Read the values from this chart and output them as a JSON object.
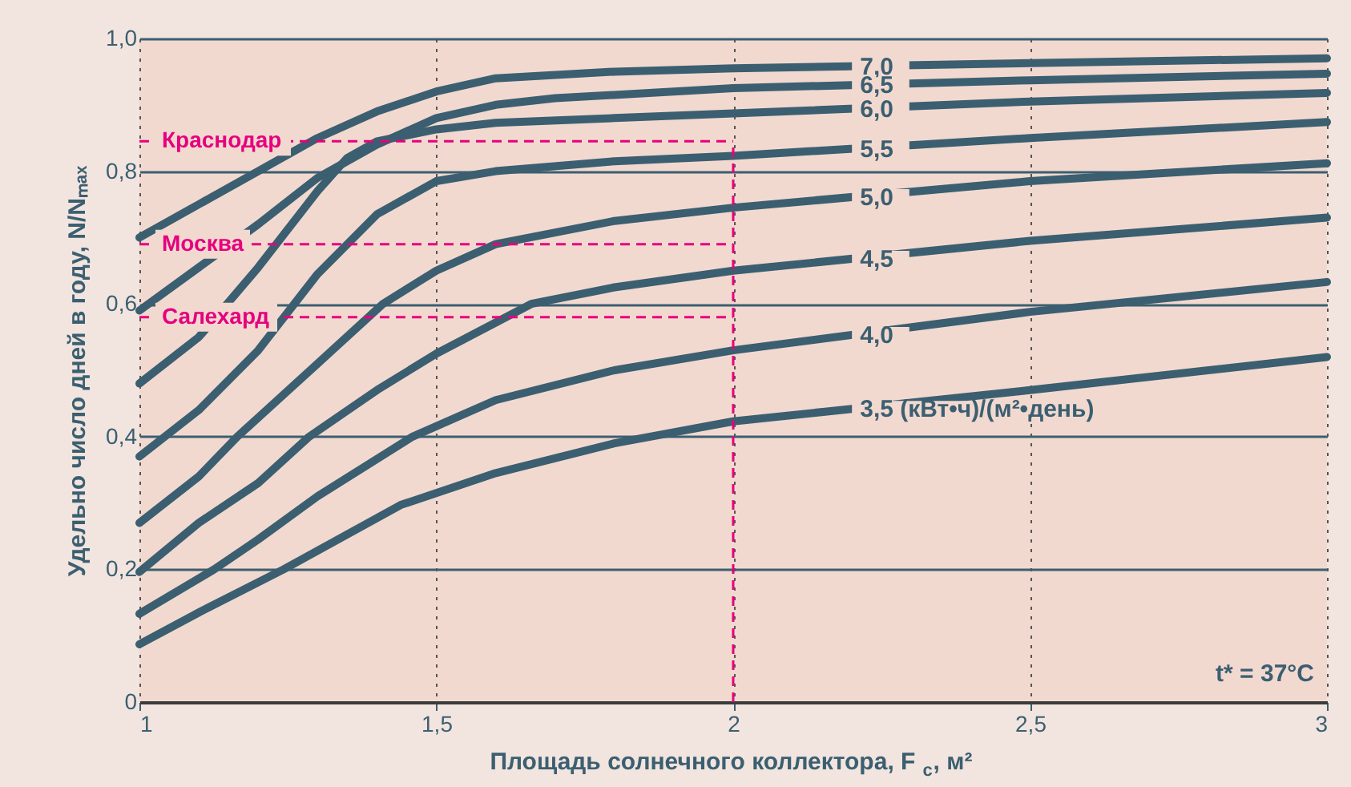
{
  "chart_data": {
    "type": "line",
    "xlabel": "Площадь солнечного коллектора, F$_{c}$, м²",
    "ylabel": "Удельно число дней в году, N/Nₘₐₓ",
    "xlim": [
      1,
      3
    ],
    "xticks": [
      1,
      {
        "value": 1.5,
        "label": "1,5"
      },
      2,
      {
        "value": 2.5,
        "label": "2,5"
      },
      3
    ],
    "ylim": [
      0,
      1
    ],
    "yticks": [
      0,
      {
        "value": 0.2,
        "label": "0,2"
      },
      {
        "value": 0.4,
        "label": "0,4"
      },
      {
        "value": 0.6,
        "label": "0,6"
      },
      {
        "value": 0.8,
        "label": "0,8"
      },
      {
        "value": 1,
        "label": "1,0"
      }
    ],
    "grid": true,
    "marker": "none",
    "line_style": "solid",
    "legend": false,
    "series": [
      {
        "name": "7,0",
        "color": "#3b5f70",
        "x": [
          1,
          1.1,
          1.2,
          1.3,
          1.4,
          1.5,
          1.6,
          1.8,
          2,
          2.5,
          3
        ],
        "values": [
          0.7,
          0.75,
          0.8,
          0.85,
          0.89,
          0.92,
          0.94,
          0.95,
          0.955,
          0.963,
          0.97
        ]
      },
      {
        "name": "6,5",
        "color": "#3b5f70",
        "x": [
          1,
          1.1,
          1.2,
          1.3,
          1.4,
          1.5,
          1.6,
          1.7,
          2,
          2.5,
          3
        ],
        "values": [
          0.59,
          0.655,
          0.72,
          0.79,
          0.84,
          0.88,
          0.9,
          0.91,
          0.925,
          0.937,
          0.947
        ]
      },
      {
        "name": "6,0",
        "color": "#3b5f70",
        "x": [
          1,
          1.1,
          1.2,
          1.3,
          1.35,
          1.4,
          1.5,
          1.6,
          1.8,
          2,
          2.5,
          3
        ],
        "values": [
          0.48,
          0.55,
          0.655,
          0.77,
          0.82,
          0.845,
          0.863,
          0.873,
          0.88,
          0.887,
          0.905,
          0.918
        ]
      },
      {
        "name": "5,5",
        "color": "#3b5f70",
        "x": [
          1,
          1.1,
          1.2,
          1.3,
          1.4,
          1.5,
          1.6,
          1.8,
          2,
          2.5,
          3
        ],
        "values": [
          0.37,
          0.44,
          0.53,
          0.645,
          0.735,
          0.785,
          0.8,
          0.815,
          0.823,
          0.85,
          0.874
        ]
      },
      {
        "name": "5,0",
        "color": "#3b5f70",
        "x": [
          1,
          1.1,
          1.165,
          1.3,
          1.41,
          1.5,
          1.6,
          1.8,
          2,
          2.5,
          3
        ],
        "values": [
          0.27,
          0.34,
          0.4,
          0.51,
          0.6,
          0.65,
          0.69,
          0.725,
          0.745,
          0.785,
          0.812
        ]
      },
      {
        "name": "4,5",
        "color": "#3b5f70",
        "x": [
          1,
          1.1,
          1.2,
          1.286,
          1.4,
          1.5,
          1.66,
          1.8,
          2,
          2.5,
          3
        ],
        "values": [
          0.196,
          0.27,
          0.33,
          0.4,
          0.47,
          0.525,
          0.6,
          0.625,
          0.65,
          0.695,
          0.73
        ]
      },
      {
        "name": "4,0",
        "color": "#3b5f70",
        "x": [
          1,
          1.126,
          1.2,
          1.3,
          1.46,
          1.6,
          1.8,
          2,
          2.5,
          3
        ],
        "values": [
          0.133,
          0.2,
          0.245,
          0.31,
          0.4,
          0.455,
          0.5,
          0.53,
          0.588,
          0.633
        ]
      },
      {
        "name": "3,5 (кВт•ч)/(м²•день)",
        "color": "#3b5f70",
        "x": [
          1,
          1.1,
          1.243,
          1.44,
          1.6,
          1.8,
          2,
          2.5,
          3
        ],
        "values": [
          0.087,
          0.135,
          0.2,
          0.297,
          0.345,
          0.39,
          0.423,
          0.47,
          0.52
        ]
      }
    ],
    "ref_lines": [
      {
        "axis": "y",
        "value": 0.845,
        "label": "Краснодар",
        "color": "#e6007e",
        "line_style": "dashed"
      },
      {
        "axis": "y",
        "value": 0.69,
        "label": "Москва",
        "color": "#e6007e",
        "line_style": "dashed"
      },
      {
        "axis": "y",
        "value": 0.58,
        "label": "Салехард",
        "color": "#e6007e",
        "line_style": "dashed"
      },
      {
        "axis": "x",
        "value": 2,
        "color": "#e6007e",
        "line_style": "dashed"
      }
    ],
    "annotations": [
      "t* = 37°C"
    ]
  }
}
